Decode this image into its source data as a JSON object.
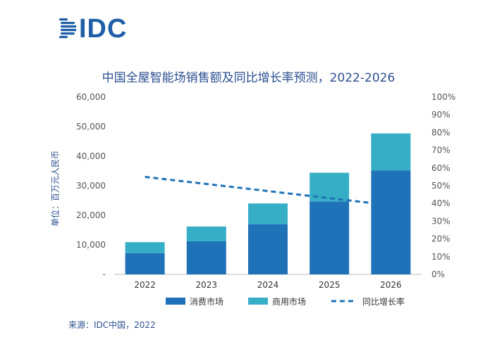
{
  "logo": {
    "text": "IDC"
  },
  "source": "来源：IDC中国，2022",
  "colors": {
    "consumer": "#1f72b8",
    "commercial": "#36afc6",
    "yoy": "#1f72b8",
    "text": "#2a4f8f",
    "axis": "#555555",
    "logo": "#1f5fa8"
  },
  "chart_data": {
    "type": "bar",
    "stacked": true,
    "title": "中国全屋智能场销售额及同比增长率预测，2022-2026",
    "ylabel": "单位：百万元人民币",
    "ylim": [
      0,
      60000
    ],
    "y2lim": [
      0,
      100
    ],
    "left_ticks": [
      "-",
      "10,000",
      "20,000",
      "30,000",
      "40,000",
      "50,000",
      "60,000"
    ],
    "right_ticks": [
      "0%",
      "10%",
      "20%",
      "30%",
      "40%",
      "50%",
      "60%",
      "70%",
      "80%",
      "90%",
      "100%"
    ],
    "categories": [
      "2022",
      "2023",
      "2024",
      "2025",
      "2026"
    ],
    "series": [
      {
        "name": "消费市场",
        "values": [
          7200,
          11200,
          17000,
          24700,
          35200
        ]
      },
      {
        "name": "商用市场",
        "values": [
          3700,
          5000,
          7000,
          9700,
          12500
        ]
      }
    ],
    "line_series": {
      "name": "同比增长率",
      "axis": "right",
      "style": "dashed",
      "values": [
        55,
        51,
        47,
        43,
        39
      ]
    },
    "legend": "bottom"
  }
}
